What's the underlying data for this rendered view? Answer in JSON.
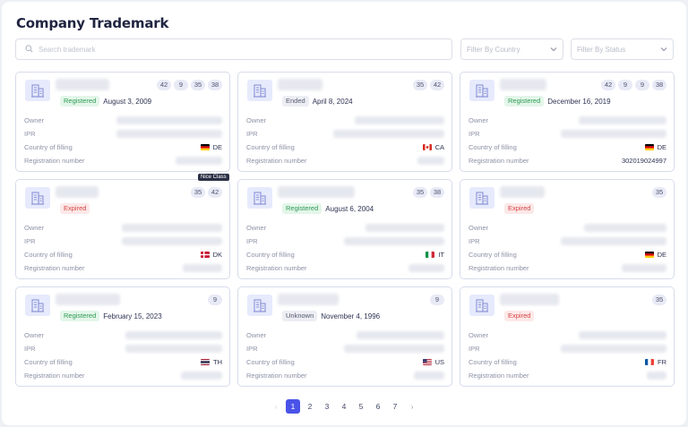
{
  "page": {
    "title": "Company Trademark"
  },
  "search": {
    "placeholder": "Search trademark"
  },
  "filters": {
    "country_placeholder": "Filter By Country",
    "status_placeholder": "Filter By Status"
  },
  "labels": {
    "owner": "Owner",
    "ipr": "IPR",
    "country": "Country of filling",
    "reg": "Registration number"
  },
  "tooltip": "Nice Class",
  "cards": [
    {
      "classes": [
        "42",
        "9",
        "35",
        "38"
      ],
      "status": "Registered",
      "date": "August 3, 2009",
      "country": "DE",
      "reg": ""
    },
    {
      "classes": [
        "35",
        "42"
      ],
      "status": "Ended",
      "date": "April 8, 2024",
      "country": "CA",
      "reg": ""
    },
    {
      "classes": [
        "42",
        "9",
        "9",
        "38"
      ],
      "status": "Registered",
      "date": "December 16, 2019",
      "country": "DE",
      "reg": "302019024997"
    },
    {
      "classes": [
        "35",
        "42"
      ],
      "status": "Expired",
      "date": "",
      "country": "DK",
      "reg": ""
    },
    {
      "classes": [
        "35",
        "38"
      ],
      "status": "Registered",
      "date": "August 6, 2004",
      "country": "IT",
      "reg": ""
    },
    {
      "classes": [
        "35"
      ],
      "status": "Expired",
      "date": "",
      "country": "DE",
      "reg": ""
    },
    {
      "classes": [
        "9"
      ],
      "status": "Registered",
      "date": "February 15, 2023",
      "country": "TH",
      "reg": ""
    },
    {
      "classes": [
        "9"
      ],
      "status": "Unknown",
      "date": "November 4, 1996",
      "country": "US",
      "reg": ""
    },
    {
      "classes": [
        "35"
      ],
      "status": "Expired",
      "date": "",
      "country": "FR",
      "reg": ""
    }
  ],
  "pagination": {
    "pages": [
      "1",
      "2",
      "3",
      "4",
      "5",
      "6",
      "7"
    ],
    "current": "1"
  }
}
